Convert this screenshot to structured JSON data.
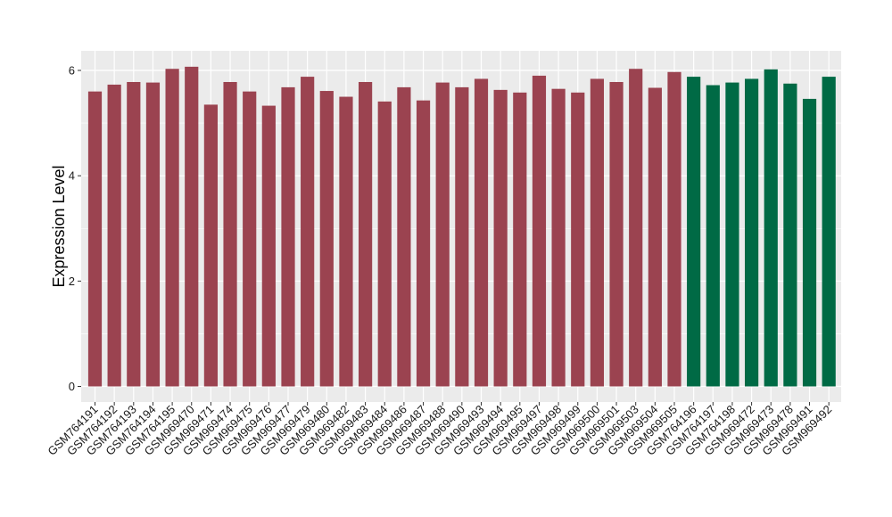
{
  "chart_data": {
    "type": "bar",
    "title": "",
    "xlabel": "",
    "ylabel": "Expression Level",
    "ylim": [
      -0.3,
      6.3
    ],
    "yticks": [
      0,
      2,
      4,
      6
    ],
    "grid": true,
    "legend": "none",
    "colors": {
      "group1": "#9b4350",
      "group2": "#006a45",
      "panel": "#ebebeb",
      "gridline": "#ffffff"
    },
    "categories": [
      "GSM764191",
      "GSM764192",
      "GSM764193",
      "GSM764194",
      "GSM764195",
      "GSM969470",
      "GSM969471",
      "GSM969474",
      "GSM969475",
      "GSM969476",
      "GSM969477",
      "GSM969479",
      "GSM969480",
      "GSM969482",
      "GSM969483",
      "GSM969484",
      "GSM969486",
      "GSM969487",
      "GSM969488",
      "GSM969490",
      "GSM969493",
      "GSM969494",
      "GSM969495",
      "GSM969497",
      "GSM969498",
      "GSM969499",
      "GSM969500",
      "GSM969501",
      "GSM969503",
      "GSM969504",
      "GSM969505",
      "GSM764196",
      "GSM764197",
      "GSM764198",
      "GSM969472",
      "GSM969473",
      "GSM969478",
      "GSM969491",
      "GSM969492"
    ],
    "values": [
      5.6,
      5.73,
      5.78,
      5.77,
      6.03,
      6.07,
      5.35,
      5.78,
      5.6,
      5.33,
      5.68,
      5.88,
      5.61,
      5.5,
      5.78,
      5.41,
      5.68,
      5.43,
      5.77,
      5.68,
      5.84,
      5.63,
      5.58,
      5.9,
      5.65,
      5.58,
      5.84,
      5.78,
      6.03,
      5.67,
      5.97,
      5.88,
      5.72,
      5.77,
      5.84,
      6.02,
      5.75,
      5.46,
      5.88
    ],
    "groups": [
      1,
      1,
      1,
      1,
      1,
      1,
      1,
      1,
      1,
      1,
      1,
      1,
      1,
      1,
      1,
      1,
      1,
      1,
      1,
      1,
      1,
      1,
      1,
      1,
      1,
      1,
      1,
      1,
      1,
      1,
      1,
      2,
      2,
      2,
      2,
      2,
      2,
      2,
      2
    ]
  }
}
